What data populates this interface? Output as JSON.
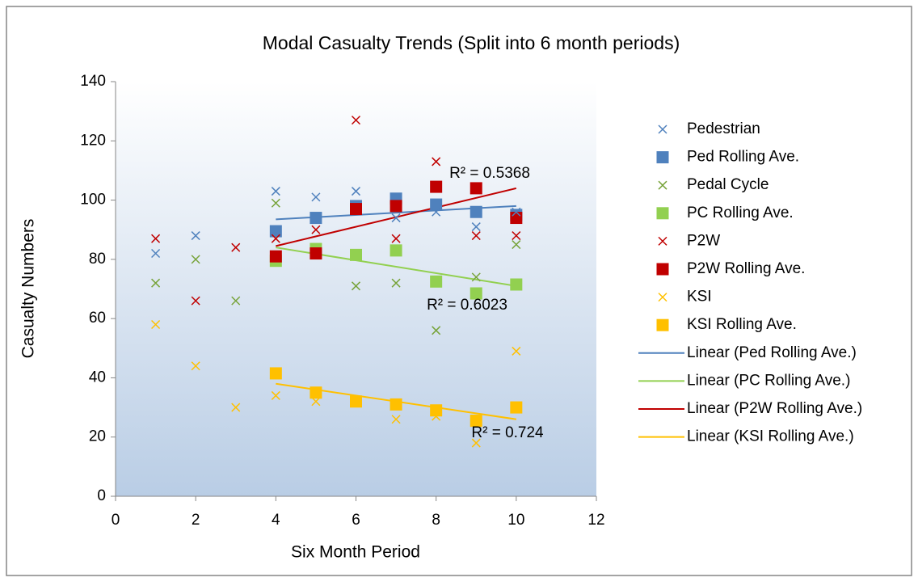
{
  "chart_data": {
    "type": "scatter",
    "title": "Modal Casualty Trends (Split into 6 month periods)",
    "x_label": "Six Month Period",
    "y_label": "Casualty Numbers",
    "xlim": [
      0,
      12
    ],
    "xticks": [
      0,
      2,
      4,
      6,
      8,
      10,
      12
    ],
    "ylim": [
      0,
      140
    ],
    "yticks": [
      0,
      20,
      40,
      60,
      80,
      100,
      120,
      140
    ],
    "legend": "right",
    "series": [
      {
        "name": "Pedestrian",
        "color": "#4f81bd",
        "marker": "x",
        "x": [
          1,
          2,
          4,
          5,
          6,
          7,
          8,
          9,
          10
        ],
        "values": [
          82,
          88,
          103,
          101,
          103,
          94,
          96,
          91,
          96
        ]
      },
      {
        "name": "Ped Rolling Ave.",
        "color": "#4f81bd",
        "marker": "square",
        "x": [
          4,
          5,
          6,
          7,
          8,
          9,
          10
        ],
        "values": [
          89.5,
          94,
          98,
          100.5,
          98.5,
          96,
          95
        ]
      },
      {
        "name": "Pedal Cycle",
        "color": "#77a33a",
        "marker": "x",
        "x": [
          1,
          2,
          3,
          4,
          6,
          7,
          8,
          9,
          10
        ],
        "values": [
          72,
          80,
          66,
          99,
          71,
          72,
          56,
          74,
          85
        ]
      },
      {
        "name": "PC Rolling Ave.",
        "color": "#92d050",
        "marker": "square",
        "x": [
          4,
          5,
          6,
          7,
          8,
          9,
          10
        ],
        "values": [
          79.5,
          83.5,
          81.5,
          83,
          72.5,
          68.5,
          71.5
        ]
      },
      {
        "name": "P2W",
        "color": "#c00000",
        "marker": "x",
        "x": [
          1,
          2,
          3,
          4,
          5,
          6,
          7,
          8,
          9,
          10
        ],
        "values": [
          87,
          66,
          84,
          87,
          90,
          127,
          87,
          113,
          88,
          88
        ]
      },
      {
        "name": "P2W Rolling Ave.",
        "color": "#c00000",
        "marker": "square",
        "x": [
          4,
          5,
          6,
          7,
          8,
          9,
          10
        ],
        "values": [
          81,
          82,
          97,
          98,
          104.5,
          104,
          94
        ]
      },
      {
        "name": "KSI",
        "color": "#ffc000",
        "marker": "x",
        "x": [
          1,
          2,
          3,
          4,
          5,
          7,
          8,
          9,
          10
        ],
        "values": [
          58,
          44,
          30,
          34,
          32,
          26,
          27,
          18,
          49
        ]
      },
      {
        "name": "KSI Rolling Ave.",
        "color": "#ffc000",
        "marker": "square",
        "x": [
          4,
          5,
          6,
          7,
          8,
          9,
          10
        ],
        "values": [
          41.5,
          35,
          32,
          31,
          29,
          25.5,
          30
        ]
      },
      {
        "name": "Linear (Ped Rolling Ave.)",
        "color": "#4f81bd",
        "marker": "line",
        "x": [
          4,
          10
        ],
        "values": [
          93.5,
          98
        ]
      },
      {
        "name": "Linear (PC Rolling Ave.)",
        "color": "#92d050",
        "marker": "line",
        "x": [
          4,
          10
        ],
        "values": [
          84,
          71
        ]
      },
      {
        "name": "Linear (P2W Rolling Ave.)",
        "color": "#c00000",
        "marker": "line",
        "x": [
          4,
          10
        ],
        "values": [
          84.5,
          104
        ]
      },
      {
        "name": "Linear (KSI Rolling Ave.)",
        "color": "#ffc000",
        "marker": "line",
        "x": [
          4,
          10
        ],
        "values": [
          38,
          26
        ]
      }
    ],
    "annotations": [
      "R² = 0.5368",
      "R² = 0.6023",
      "R² = 0.724"
    ]
  }
}
